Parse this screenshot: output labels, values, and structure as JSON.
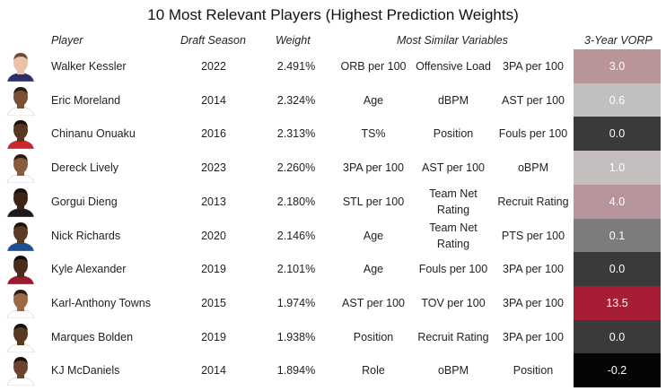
{
  "title": "10 Most Relevant Players (Highest Prediction Weights)",
  "headers": {
    "player": "Player",
    "draft_season": "Draft Season",
    "weight": "Weight",
    "similar": "Most Similar Variables",
    "vorp": "3-Year VORP"
  },
  "rows": [
    {
      "name": "Walker Kessler",
      "season": "2022",
      "weight": "2.491%",
      "v1": "ORB per 100",
      "v2": "Offensive Load",
      "v3": "3PA per 100",
      "vorp": "3.0",
      "vorp_color": "#b9959a",
      "skin": "#e9c3a8",
      "hair": "#6a4a32",
      "jersey": "#2a2f6b"
    },
    {
      "name": "Eric Moreland",
      "season": "2014",
      "weight": "2.324%",
      "v1": "Age",
      "v2": "dBPM",
      "v3": "AST per 100",
      "vorp": "0.6",
      "vorp_color": "#c1bfbf",
      "skin": "#7a5036",
      "hair": "#2a1a10",
      "jersey": "#ffffff"
    },
    {
      "name": "Chinanu Onuaku",
      "season": "2016",
      "weight": "2.313%",
      "v1": "TS%",
      "v2": "Position",
      "v3": "Fouls per 100",
      "vorp": "0.0",
      "vorp_color": "#3a3a3a",
      "skin": "#5a3622",
      "hair": "#1a100a",
      "jersey": "#c8282e"
    },
    {
      "name": "Dereck Lively",
      "season": "2023",
      "weight": "2.260%",
      "v1": "3PA per 100",
      "v2": "AST per 100",
      "v3": "oBPM",
      "vorp": "1.0",
      "vorp_color": "#c4bdbe",
      "skin": "#8a5a3c",
      "hair": "#2a1a10",
      "jersey": "#ffffff"
    },
    {
      "name": "Gorgui Dieng",
      "season": "2013",
      "weight": "2.180%",
      "v1": "STL per 100",
      "v2": "Team Net Rating",
      "v3": "Recruit Rating",
      "vorp": "4.0",
      "vorp_color": "#b69499",
      "skin": "#3e2416",
      "hair": "#140c08",
      "jersey": "#1b1b1b"
    },
    {
      "name": "Nick Richards",
      "season": "2020",
      "weight": "2.146%",
      "v1": "Age",
      "v2": "Team Net Rating",
      "v3": "PTS per 100",
      "vorp": "0.1",
      "vorp_color": "#7c7c7c",
      "skin": "#5a3a26",
      "hair": "#1c120c",
      "jersey": "#1d4f91"
    },
    {
      "name": "Kyle Alexander",
      "season": "2019",
      "weight": "2.101%",
      "v1": "Age",
      "v2": "Fouls per 100",
      "v3": "3PA per 100",
      "vorp": "0.0",
      "vorp_color": "#3a3a3a",
      "skin": "#4a2c1c",
      "hair": "#140c08",
      "jersey": "#9a1b2e"
    },
    {
      "name": "Karl-Anthony Towns",
      "season": "2015",
      "weight": "1.974%",
      "v1": "AST per 100",
      "v2": "TOV per 100",
      "v3": "3PA per 100",
      "vorp": "13.5",
      "vorp_color": "#a61d35",
      "skin": "#9a6a48",
      "hair": "#2a1a10",
      "jersey": "#ffffff"
    },
    {
      "name": "Marques Bolden",
      "season": "2019",
      "weight": "1.938%",
      "v1": "Position",
      "v2": "Recruit Rating",
      "v3": "3PA per 100",
      "vorp": "0.0",
      "vorp_color": "#3a3a3a",
      "skin": "#5a3822",
      "hair": "#1a100a",
      "jersey": "#ffffff"
    },
    {
      "name": "KJ McDaniels",
      "season": "2014",
      "weight": "1.894%",
      "v1": "Role",
      "v2": "oBPM",
      "v3": "Position",
      "vorp": "-0.2",
      "vorp_color": "#050505",
      "skin": "#6a4430",
      "hair": "#1a100a",
      "jersey": "#ffffff"
    }
  ]
}
